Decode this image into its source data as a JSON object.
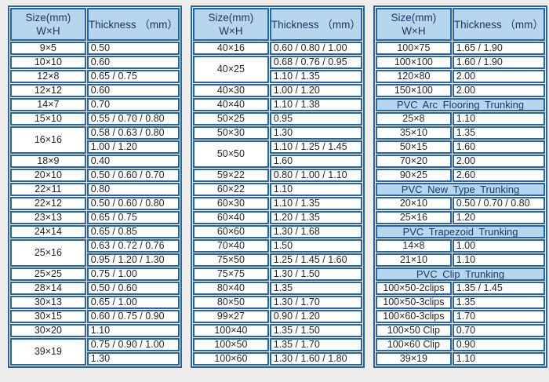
{
  "colors": {
    "border": "#2265ae",
    "header_bg": "#b5d6ec",
    "header_text": "#1f3864",
    "cell_text": "#262626",
    "cell_bg": "#ffffff",
    "page_bg": "#efeeec"
  },
  "table_header": {
    "size_line1": "Size(mm)",
    "size_line2": "W×H",
    "thickness": "Thickness （mm）"
  },
  "tables": [
    {
      "id": "pvc-trunking-sizes-column-1",
      "rows": [
        {
          "size": "9×5",
          "thickness": [
            "0.50"
          ]
        },
        {
          "size": "10×10",
          "thickness": [
            "0.60"
          ]
        },
        {
          "size": "12×8",
          "thickness": [
            "0.65 / 0.75"
          ]
        },
        {
          "size": "12×12",
          "thickness": [
            "0.60"
          ]
        },
        {
          "size": "14×7",
          "thickness": [
            "0.70"
          ]
        },
        {
          "size": "15×10",
          "thickness": [
            "0.55 / 0.70 / 0.80"
          ]
        },
        {
          "size": "16×16",
          "thickness": [
            "0.58 / 0.63 / 0.80",
            "1.00 / 1.20"
          ]
        },
        {
          "size": "18×9",
          "thickness": [
            "0.40"
          ]
        },
        {
          "size": "20×10",
          "thickness": [
            "0.50 / 0.60 / 0.70"
          ]
        },
        {
          "size": "22×11",
          "thickness": [
            "0.80"
          ]
        },
        {
          "size": "22×12",
          "thickness": [
            "0.50 / 0.60 / 0.80"
          ]
        },
        {
          "size": "23×13",
          "thickness": [
            "0.65 / 0.75"
          ]
        },
        {
          "size": "24×14",
          "thickness": [
            "0.65 / 0.85"
          ]
        },
        {
          "size": "25×16",
          "thickness": [
            "0.63 / 0.72 / 0.76",
            "0.95 / 1.20 / 1.30"
          ]
        },
        {
          "size": "25×25",
          "thickness": [
            "0.75 / 1.00"
          ]
        },
        {
          "size": "28×14",
          "thickness": [
            "0.50 / 0.60"
          ]
        },
        {
          "size": "30×13",
          "thickness": [
            "0.65 / 1.00"
          ]
        },
        {
          "size": "30×15",
          "thickness": [
            "0.60 / 0.75 / 0.90"
          ]
        },
        {
          "size": "30×20",
          "thickness": [
            "1.10"
          ]
        },
        {
          "size": "39×19",
          "thickness": [
            "0.75 / 0.90 / 1.00",
            "1.30"
          ]
        }
      ]
    },
    {
      "id": "pvc-trunking-sizes-column-2",
      "rows": [
        {
          "size": "40×16",
          "thickness": [
            "0.60 / 0.80 / 1.00"
          ]
        },
        {
          "size": "40×25",
          "thickness": [
            "0.68 / 0.76 / 0.95",
            "1.10 / 1.35"
          ]
        },
        {
          "size": "40×30",
          "thickness": [
            "1.00 / 1.20"
          ]
        },
        {
          "size": "40×40",
          "thickness": [
            "1.10 / 1.38"
          ]
        },
        {
          "size": "50×25",
          "thickness": [
            "0.95"
          ]
        },
        {
          "size": "50×30",
          "thickness": [
            "1.30"
          ]
        },
        {
          "size": "50×50",
          "thickness": [
            "1.10 / 1.25 / 1.45",
            "1.60"
          ]
        },
        {
          "size": "59×22",
          "thickness": [
            "0.80 / 1.00 / 1.10"
          ]
        },
        {
          "size": "60×22",
          "thickness": [
            "1.10"
          ]
        },
        {
          "size": "60×30",
          "thickness": [
            "1.10 / 1.35"
          ]
        },
        {
          "size": "60×40",
          "thickness": [
            "1.20 / 1.35"
          ]
        },
        {
          "size": "60×60",
          "thickness": [
            "1.30 / 1.68"
          ]
        },
        {
          "size": "70×40",
          "thickness": [
            "1.50"
          ]
        },
        {
          "size": "75×50",
          "thickness": [
            "1.25 / 1.45 / 1.60"
          ]
        },
        {
          "size": "75×75",
          "thickness": [
            "1.30 / 1.50"
          ]
        },
        {
          "size": "80×40",
          "thickness": [
            "1.35"
          ]
        },
        {
          "size": "80×50",
          "thickness": [
            "1.30 / 1.70"
          ]
        },
        {
          "size": "99×27",
          "thickness": [
            "0.90 / 1.20"
          ]
        },
        {
          "size": "100×40",
          "thickness": [
            "1.35 / 1.50"
          ]
        },
        {
          "size": "100×50",
          "thickness": [
            "1.35 / 1.70"
          ]
        },
        {
          "size": "100×60",
          "thickness": [
            "1.30 / 1.60 / 1.80"
          ]
        }
      ]
    },
    {
      "id": "pvc-trunking-sizes-column-3",
      "rows": [
        {
          "size": "100×75",
          "thickness": [
            "1.65 / 1.90"
          ]
        },
        {
          "size": "100×100",
          "thickness": [
            "1.60 / 1.90"
          ]
        },
        {
          "size": "120×80",
          "thickness": [
            "2.00"
          ]
        },
        {
          "size": "150×100",
          "thickness": [
            "2.00"
          ]
        },
        {
          "section": "PVC Arc Flooring Trunking"
        },
        {
          "size": "25×8",
          "thickness": [
            "1.10"
          ]
        },
        {
          "size": "35×10",
          "thickness": [
            "1.35"
          ]
        },
        {
          "size": "50×15",
          "thickness": [
            "1.60"
          ]
        },
        {
          "size": "70×20",
          "thickness": [
            "2.00"
          ]
        },
        {
          "size": "90×25",
          "thickness": [
            "2.60"
          ]
        },
        {
          "section": "PVC New Type Trunking"
        },
        {
          "size": "20×10",
          "thickness": [
            "0.50 / 0.70 / 0.80"
          ]
        },
        {
          "size": "25×16",
          "thickness": [
            "1.20"
          ]
        },
        {
          "section": "PVC Trapezoid Trunking"
        },
        {
          "size": "14×8",
          "thickness": [
            "1.00"
          ]
        },
        {
          "size": "21×10",
          "thickness": [
            "1.10"
          ]
        },
        {
          "section": "PVC Clip Trunking"
        },
        {
          "size": "100×50-2clips",
          "thickness": [
            "1.35 / 1.45"
          ]
        },
        {
          "size": "100×50-3clips",
          "thickness": [
            "1.35"
          ]
        },
        {
          "size": "100×60-3clips",
          "thickness": [
            "1.70"
          ]
        },
        {
          "size": "100×50 Clip",
          "thickness": [
            "0.70"
          ]
        },
        {
          "size": "100×60 Clip",
          "thickness": [
            "0.90"
          ]
        },
        {
          "size": "39×19",
          "thickness": [
            "1.10"
          ]
        }
      ]
    }
  ]
}
